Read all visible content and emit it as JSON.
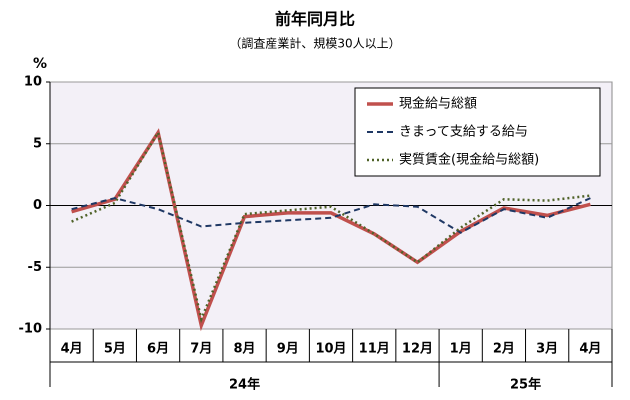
{
  "chart_data": {
    "type": "line",
    "title": "前年同月比",
    "subtitle": "（調査産業計、規模30人以上）",
    "y_label": "%",
    "categories": [
      "4月",
      "5月",
      "6月",
      "7月",
      "8月",
      "9月",
      "10月",
      "11月",
      "12月",
      "1月",
      "2月",
      "3月",
      "4月"
    ],
    "category_groups": [
      "24年",
      "24年",
      "24年",
      "24年",
      "24年",
      "24年",
      "24年",
      "24年",
      "24年",
      "25年",
      "25年",
      "25年",
      "25年"
    ],
    "ylim": [
      -10,
      10
    ],
    "yticks": [
      -10,
      -5,
      0,
      5,
      10
    ],
    "grid": true,
    "legend": "upper right",
    "series": [
      {
        "name": "現金給与総額",
        "color": "#c0504d",
        "dash": "solid",
        "values": [
          -0.5,
          0.5,
          5.9,
          -9.7,
          -0.9,
          -0.6,
          -0.6,
          -2.3,
          -4.6,
          -2.1,
          -0.2,
          -0.8,
          0.1
        ]
      },
      {
        "name": "きまって支給する給与",
        "color": "#1f3864",
        "dash": "dashed",
        "values": [
          -0.3,
          0.6,
          -0.3,
          -1.7,
          -1.4,
          -1.2,
          -1.0,
          0.1,
          -0.1,
          -2.2,
          -0.3,
          -1.0,
          0.6
        ]
      },
      {
        "name": "実質賃金(現金給与総額)",
        "color": "#4f6228",
        "dash": "dotted",
        "values": [
          -1.3,
          0.2,
          5.9,
          -9.2,
          -0.7,
          -0.4,
          -0.1,
          -2.3,
          -4.6,
          -1.8,
          0.5,
          0.4,
          0.8
        ]
      }
    ]
  }
}
